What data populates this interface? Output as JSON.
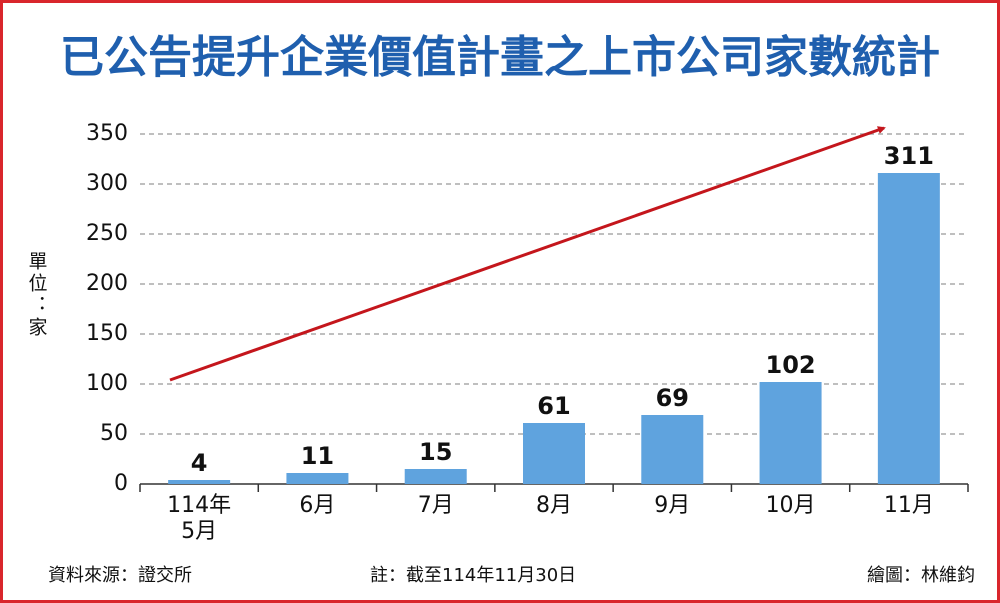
{
  "chart_data": {
    "type": "bar",
    "title": "已公告提升企業價值計畫之上市公司家數統計",
    "y_label": "單位：家",
    "categories": [
      "114年\n5月",
      "6月",
      "7月",
      "8月",
      "9月",
      "10月",
      "11月"
    ],
    "values": [
      4,
      11,
      15,
      61,
      69,
      102,
      311
    ],
    "color": "#5fa3de",
    "ylim": [
      0,
      350
    ],
    "yticks": [
      0,
      50,
      100,
      150,
      200,
      250,
      300,
      350
    ],
    "grid": true,
    "source": "資料來源：證交所",
    "note": "註：截至114年11月30日",
    "credit": "繪圖：林維鈞"
  }
}
